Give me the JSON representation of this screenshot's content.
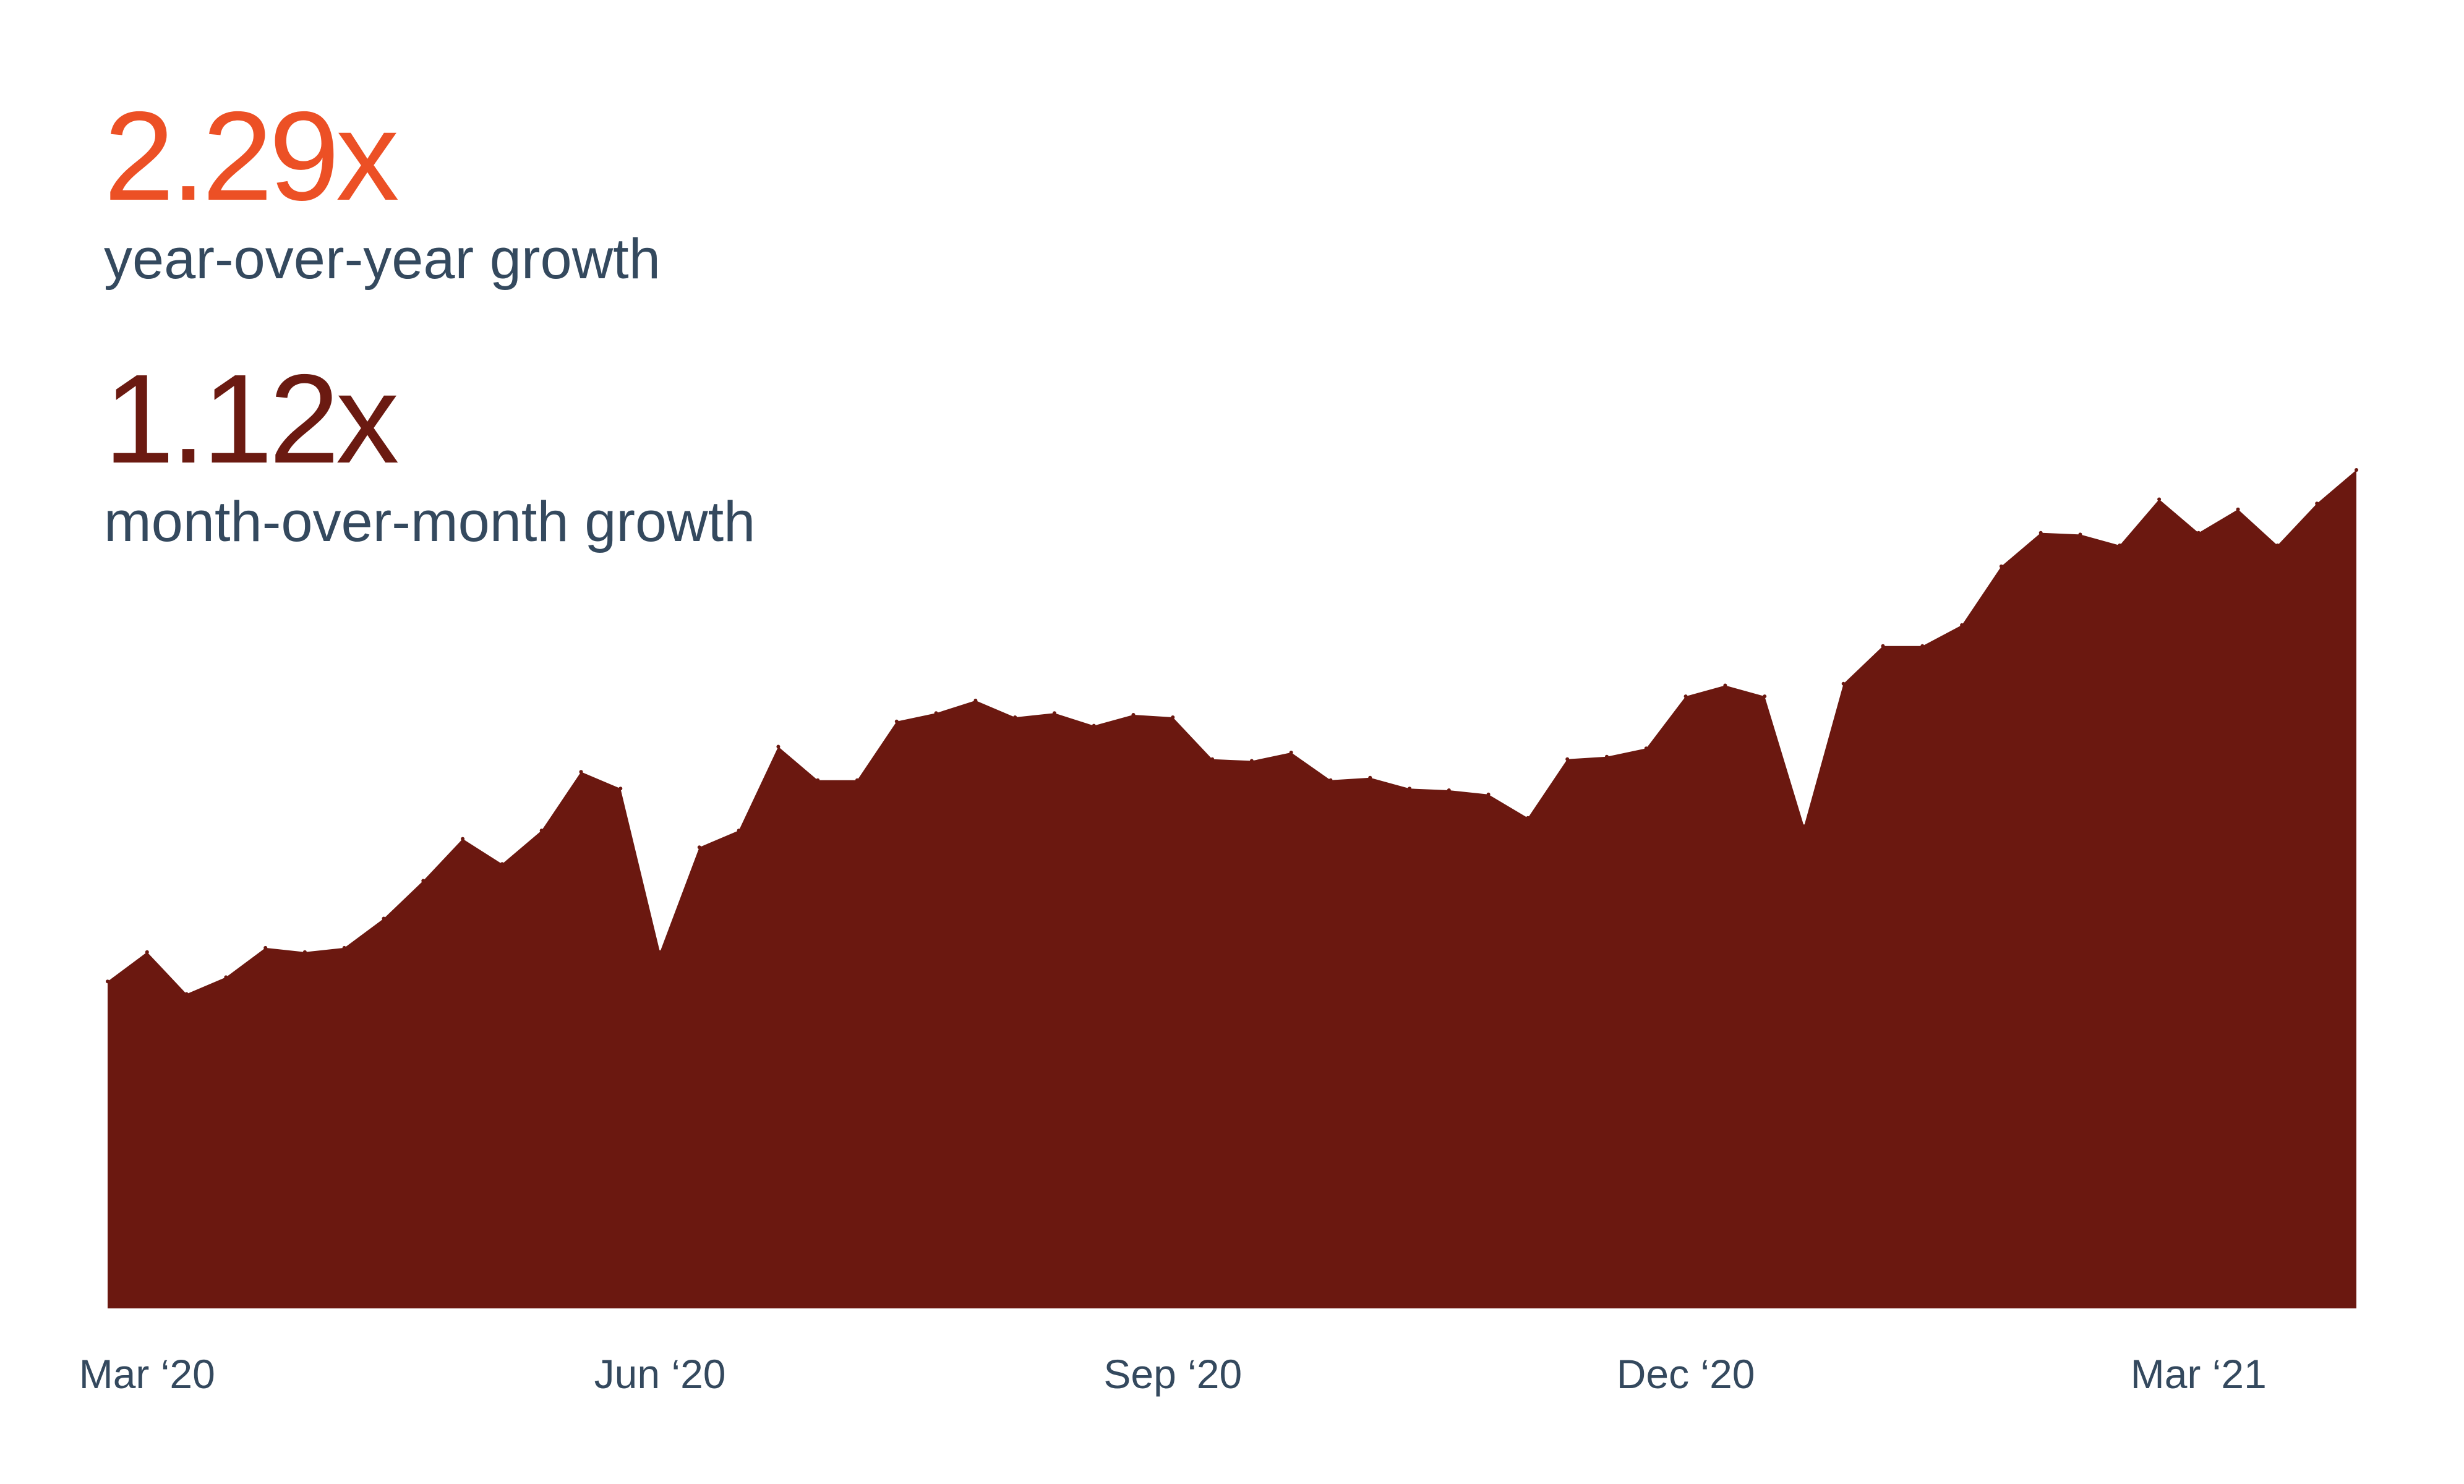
{
  "stats": {
    "yoy": {
      "value": "2.29x",
      "label": "year-over-year growth"
    },
    "mom": {
      "value": "1.12x",
      "label": "month-over-month growth"
    }
  },
  "colors": {
    "yoy_accent": "#ec5025",
    "mom_accent": "#6b1a11",
    "area_fill": "#6b1810",
    "label_text": "#34495e"
  },
  "chart_data": {
    "type": "area",
    "title": "",
    "xlabel": "",
    "ylabel": "",
    "x_ticks": [
      "Mar ‘20",
      "Jun ‘20",
      "Sep ‘20",
      "Dec ‘20",
      "Mar ‘21"
    ],
    "x_tick_index": [
      1,
      14,
      27,
      40,
      53
    ],
    "grid": false,
    "legend": "none",
    "ylim": [
      0,
      100
    ],
    "series": [
      {
        "name": "",
        "values": [
          39,
          42.5,
          37.5,
          39.5,
          43,
          42.5,
          43,
          46.5,
          51,
          56,
          53,
          57,
          64,
          62,
          42.5,
          55,
          57,
          67,
          63,
          63,
          70,
          71,
          72.5,
          70.5,
          71,
          69.5,
          70.8,
          70.5,
          65.5,
          65.3,
          66.3,
          63,
          63.3,
          62,
          61.8,
          61.3,
          58.5,
          65.5,
          65.8,
          66.8,
          73,
          74.3,
          73,
          57.5,
          74.5,
          79,
          79,
          81.5,
          88.5,
          92.5,
          92.3,
          91,
          96.5,
          92.5,
          95.3,
          91,
          96,
          100
        ]
      }
    ]
  }
}
